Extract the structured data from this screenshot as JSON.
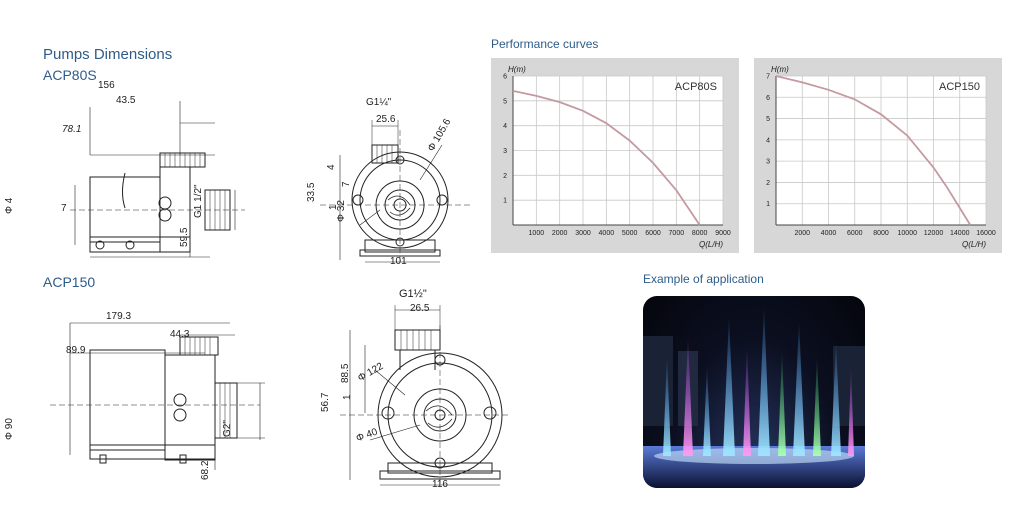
{
  "left": {
    "title": "Pumps Dimensions",
    "model1": "ACP80S",
    "model1_sub": "156",
    "model2": "ACP150"
  },
  "acp80s_side": {
    "d_43_5": "43.5",
    "d_78_1": "78.1",
    "d_7": "7",
    "d_phi4": "Φ 4",
    "d_g": "G1 1/2\"",
    "d_59_5": "59.5"
  },
  "acp80s_front": {
    "d_g": "G1¼\"",
    "d_25_6": "25.6",
    "d_105_6": "Φ 105.6",
    "d_33_5": "33.5",
    "d_4": "4",
    "d_7": "7",
    "d_32": "Φ 32",
    "d_1": "1",
    "d_101": "101"
  },
  "acp150_side": {
    "d_179_3": "179.3",
    "d_44_3": "44.3",
    "d_89_9": "89.9",
    "d_phi90": "Φ 90",
    "d_g2": "G2\"",
    "d_68_2": "68.2"
  },
  "acp150_front": {
    "d_g": "G1½\"",
    "d_26_5": "26.5",
    "d_88_5": "88.5",
    "d_122": "Φ 122",
    "d_56_7": "56.7",
    "d_1": "1",
    "d_40": "Φ 40",
    "d_116": "116"
  },
  "right": {
    "performance_title": "Performance curves",
    "application_title": "Example of application"
  },
  "chart_data": [
    {
      "type": "line",
      "title": "ACP80S",
      "xlabel": "Q(L/H)",
      "ylabel": "H(m)",
      "xlim": [
        0,
        9000
      ],
      "ylim": [
        0,
        6
      ],
      "x_ticks": [
        "1000",
        "2000",
        "3000",
        "4000",
        "5000",
        "6000",
        "7000",
        "8000",
        "9000"
      ],
      "y_ticks": [
        "1",
        "2",
        "3",
        "4",
        "5",
        "6"
      ],
      "grid": true,
      "series": [
        {
          "x": [
            0,
            1000,
            2000,
            3000,
            4000,
            5000,
            6000,
            7000,
            7500,
            8000
          ],
          "values": [
            5.4,
            5.2,
            4.95,
            4.6,
            4.1,
            3.4,
            2.5,
            1.4,
            0.7,
            0
          ]
        }
      ]
    },
    {
      "type": "line",
      "title": "ACP150",
      "xlabel": "Q(L/H)",
      "ylabel": "H(m)",
      "xlim": [
        0,
        16000
      ],
      "ylim": [
        0,
        7
      ],
      "x_ticks": [
        "2000",
        "4000",
        "6000",
        "8000",
        "10000",
        "12000",
        "14000",
        "16000"
      ],
      "y_ticks": [
        "1",
        "2",
        "3",
        "4",
        "5",
        "6",
        "7"
      ],
      "grid": true,
      "series": [
        {
          "x": [
            0,
            2000,
            4000,
            6000,
            8000,
            10000,
            12000,
            13000,
            14000,
            14800
          ],
          "values": [
            7.0,
            6.7,
            6.35,
            5.9,
            5.2,
            4.2,
            2.7,
            1.8,
            0.8,
            0
          ]
        }
      ]
    }
  ],
  "colors": {
    "heading": "#2e5c8a",
    "chart_bg": "#d7d7d7",
    "curve": "#c49aa0"
  }
}
